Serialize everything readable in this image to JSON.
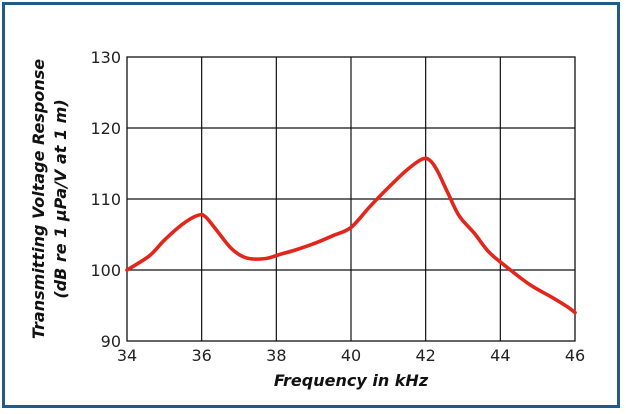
{
  "chart_data": {
    "type": "line",
    "title": "",
    "xlabel": "Frequency in kHz",
    "ylabel_line1": "Transmitting Voltage Response",
    "ylabel_line2": "(dB re 1 µPa/V at 1 m)",
    "xlim": [
      34,
      46
    ],
    "ylim": [
      90,
      130
    ],
    "grid": true,
    "xticks": [
      "34",
      "36",
      "38",
      "40",
      "42",
      "44",
      "46"
    ],
    "yticks": [
      "90",
      "100",
      "110",
      "120",
      "130"
    ],
    "series": [
      {
        "color": "#e3261c",
        "x": [
          34,
          34.6,
          35.0,
          35.5,
          35.9,
          36.1,
          36.4,
          36.8,
          37.2,
          37.7,
          38.1,
          38.5,
          39.0,
          39.5,
          40.0,
          40.5,
          41.0,
          41.5,
          41.9,
          42.1,
          42.3,
          42.6,
          42.9,
          43.3,
          43.7,
          44.2,
          44.8,
          45.4,
          45.8,
          46.0
        ],
        "y": [
          100.0,
          102.0,
          104.2,
          106.5,
          107.7,
          107.5,
          105.6,
          103.0,
          101.7,
          101.6,
          102.2,
          102.8,
          103.7,
          104.8,
          106.0,
          108.9,
          111.6,
          114.1,
          115.6,
          115.5,
          114.1,
          110.8,
          107.6,
          105.2,
          102.5,
          100.3,
          97.9,
          96.1,
          94.8,
          94.0
        ]
      }
    ]
  }
}
